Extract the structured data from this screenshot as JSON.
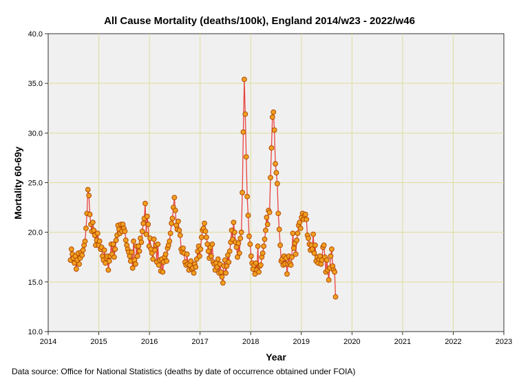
{
  "chart_data": {
    "type": "line",
    "title": "All Cause Mortality (deaths/100k), England 2014/w23 - 2022/w46",
    "xlabel": "Year",
    "ylabel": "Mortality 60-69y",
    "xlim": [
      2014,
      2023
    ],
    "ylim": [
      10.0,
      40.0
    ],
    "x_ticks": [
      "2014",
      "2015",
      "2016",
      "2017",
      "2018",
      "2019",
      "2020",
      "2021",
      "2022",
      "2023"
    ],
    "y_ticks": [
      "10.0",
      "15.0",
      "20.0",
      "25.0",
      "30.0",
      "35.0",
      "40.0"
    ],
    "grid": true,
    "colors": {
      "line": "#e8413c",
      "marker_fill": "#f0a020",
      "marker_edge": "#b34700",
      "plot_bg": "#f0f0f0",
      "grid": "#e0dc9a"
    },
    "series": [
      {
        "name": "Mortality 60-69y",
        "x_start": 2014.44,
        "x_step": 0.01918,
        "values": [
          17.2,
          18.3,
          17.8,
          17.4,
          16.9,
          17.6,
          16.3,
          17.2,
          17.9,
          16.8,
          17.4,
          18.0,
          17.7,
          18.2,
          18.7,
          19.1,
          20.4,
          21.9,
          24.3,
          23.7,
          21.8,
          20.8,
          20.1,
          21.0,
          20.2,
          19.7,
          18.7,
          19.2,
          19.9,
          18.7,
          19.1,
          18.3,
          18.5,
          17.6,
          17.2,
          18.2,
          16.9,
          17.4,
          17.6,
          16.2,
          17.1,
          17.6,
          18.8,
          17.8,
          18.8,
          17.5,
          18.3,
          19.2,
          19.7,
          20.7,
          20.3,
          19.9,
          20.8,
          20.1,
          20.8,
          20.4,
          20.1,
          19.2,
          18.7,
          18.3,
          18.0,
          17.6,
          17.1,
          18.0,
          16.4,
          19.1,
          17.2,
          16.8,
          18.6,
          17.6,
          18.6,
          18.1,
          19.4,
          19.0,
          20.1,
          20.9,
          21.4,
          22.9,
          19.8,
          21.6,
          20.8,
          18.6,
          19.4,
          18.3,
          17.9,
          17.3,
          19.3,
          18.2,
          18.7,
          17.0,
          18.8,
          16.7,
          17.2,
          16.1,
          17.3,
          16.0,
          17.0,
          17.5,
          17.8,
          17.1,
          18.4,
          18.7,
          19.1,
          19.9,
          20.9,
          21.4,
          22.5,
          23.5,
          22.2,
          20.7,
          20.3,
          21.1,
          20.2,
          19.7,
          18.3,
          18.0,
          18.4,
          17.9,
          17.0,
          16.7,
          17.8,
          16.8,
          16.2,
          16.7,
          17.1,
          16.3,
          16.4,
          15.9,
          16.8,
          16.5,
          17.3,
          18.1,
          18.6,
          17.6,
          18.3,
          19.5,
          20.2,
          20.4,
          20.9,
          20.1,
          19.5,
          18.8,
          18.1,
          17.4,
          18.5,
          17.6,
          18.8,
          17.0,
          16.8,
          16.2,
          16.9,
          16.5,
          17.3,
          15.9,
          16.8,
          16.0,
          15.5,
          14.9,
          16.6,
          17.2,
          15.9,
          16.6,
          17.7,
          17.0,
          18.1,
          19.0,
          20.2,
          19.3,
          21.0,
          20.0,
          19.0,
          18.5,
          17.5,
          18.9,
          17.9,
          19.4,
          20.0,
          24.0,
          30.1,
          35.4,
          31.9,
          27.6,
          23.6,
          21.7,
          19.6,
          18.8,
          17.6,
          16.9,
          16.3,
          16.7,
          15.8,
          16.9,
          16.2,
          18.6,
          16.0,
          16.6,
          16.7,
          17.5,
          17.9,
          18.6,
          19.3,
          20.2,
          21.5,
          20.8,
          22.2,
          22.0,
          25.5,
          28.5,
          31.6,
          32.1,
          30.3,
          26.9,
          26.0,
          24.9,
          21.9,
          20.3,
          18.7,
          17.1,
          17.3,
          16.7,
          17.6,
          16.8,
          17.4,
          15.8,
          16.8,
          17.6,
          16.9,
          16.7,
          17.5,
          19.9,
          18.4,
          18.9,
          17.8,
          19.2,
          19.9,
          20.7,
          21.0,
          20.4,
          21.5,
          21.9,
          21.3,
          21.7,
          21.8,
          21.3,
          19.7,
          19.4,
          18.8,
          18.2,
          18.7,
          18.3,
          19.8,
          17.9,
          18.7,
          17.1,
          17.5,
          16.9,
          17.3,
          17.6,
          16.8,
          17.2,
          18.5,
          18.7,
          17.5,
          16.0,
          17.2,
          16.2,
          15.2,
          16.4,
          17.6,
          18.3,
          16.6,
          16.2,
          16.0,
          13.5
        ]
      }
    ]
  },
  "source_note": "Data source: Office for National Statistics (deaths by date of occurrence obtained under FOIA)"
}
